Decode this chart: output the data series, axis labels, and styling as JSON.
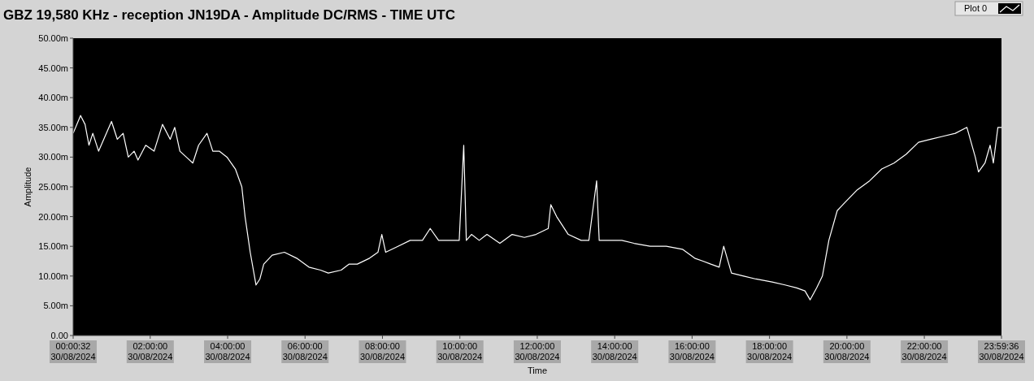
{
  "chart_data": {
    "type": "line",
    "title": "GBZ  19,580 KHz - reception JN19DA -  Amplitude DC/RMS   - TIME UTC",
    "xlabel": "Time",
    "ylabel": "Amplitude",
    "legend": "top right",
    "x": [
      "2024-08-30T00:00:32",
      "2024-08-30T00:12",
      "2024-08-30T00:19",
      "2024-08-30T00:25",
      "2024-08-30T00:31",
      "2024-08-30T00:40",
      "2024-08-30T00:50",
      "2024-08-30T01:00",
      "2024-08-30T01:09",
      "2024-08-30T01:18",
      "2024-08-30T01:26",
      "2024-08-30T01:35",
      "2024-08-30T01:41",
      "2024-08-30T01:53",
      "2024-08-30T02:06",
      "2024-08-30T02:19",
      "2024-08-30T02:31",
      "2024-08-30T02:38",
      "2024-08-30T02:46",
      "2024-08-30T02:56",
      "2024-08-30T03:06",
      "2024-08-30T03:15",
      "2024-08-30T03:28",
      "2024-08-30T03:37",
      "2024-08-30T03:47",
      "2024-08-30T03:59",
      "2024-08-30T04:12",
      "2024-08-30T04:22",
      "2024-08-30T04:27",
      "2024-08-30T04:35",
      "2024-08-30T04:44",
      "2024-08-30T04:50",
      "2024-08-30T04:56",
      "2024-08-30T05:09",
      "2024-08-30T05:28",
      "2024-08-30T05:47",
      "2024-08-30T06:06",
      "2024-08-30T06:24",
      "2024-08-30T06:36",
      "2024-08-30T06:56",
      "2024-08-30T07:08",
      "2024-08-30T07:21",
      "2024-08-30T07:40",
      "2024-08-30T07:53",
      "2024-08-30T07:59",
      "2024-08-30T08:05",
      "2024-08-30T08:24",
      "2024-08-30T08:43",
      "2024-08-30T09:02",
      "2024-08-30T09:14",
      "2024-08-30T09:27",
      "2024-08-30T09:46",
      "2024-08-30T09:59",
      "2024-08-30T10:06",
      "2024-08-30T10:10",
      "2024-08-30T10:18",
      "2024-08-30T10:30",
      "2024-08-30T10:42",
      "2024-08-30T11:02",
      "2024-08-30T11:21",
      "2024-08-30T11:40",
      "2024-08-30T11:58",
      "2024-08-30T12:17",
      "2024-08-30T12:21",
      "2024-08-30T12:30",
      "2024-08-30T12:48",
      "2024-08-30T13:08",
      "2024-08-30T13:20",
      "2024-08-30T13:32",
      "2024-08-30T13:36",
      "2024-08-30T13:52",
      "2024-08-30T14:11",
      "2024-08-30T14:30",
      "2024-08-30T14:55",
      "2024-08-30T15:20",
      "2024-08-30T15:45",
      "2024-08-30T16:04",
      "2024-08-30T16:17",
      "2024-08-30T16:29",
      "2024-08-30T16:42",
      "2024-08-30T16:49",
      "2024-08-30T17:01",
      "2024-08-30T17:20",
      "2024-08-30T17:39",
      "2024-08-30T18:04",
      "2024-08-30T18:24",
      "2024-08-30T18:42",
      "2024-08-30T18:55",
      "2024-08-30T19:03",
      "2024-08-30T19:13",
      "2024-08-30T19:22",
      "2024-08-30T19:32",
      "2024-08-30T19:45",
      "2024-08-30T19:58",
      "2024-08-30T20:16",
      "2024-08-30T20:35",
      "2024-08-30T20:54",
      "2024-08-30T21:13",
      "2024-08-30T21:32",
      "2024-08-30T21:51",
      "2024-08-30T22:10",
      "2024-08-30T22:29",
      "2024-08-30T22:48",
      "2024-08-30T23:06",
      "2024-08-30T23:19",
      "2024-08-30T23:24",
      "2024-08-30T23:34",
      "2024-08-30T23:42",
      "2024-08-30T23:47",
      "2024-08-30T23:54",
      "2024-08-30T23:59:36"
    ],
    "series": [
      {
        "name": "Plot 0",
        "color": "#ffffff",
        "values": [
          34,
          37,
          35.5,
          32,
          34,
          31,
          33.5,
          36,
          33,
          34,
          30,
          31,
          29.5,
          32,
          31,
          35.5,
          33,
          35,
          31,
          30,
          29,
          32,
          34,
          31,
          31,
          30,
          28,
          25,
          20,
          14,
          8.5,
          9.5,
          12,
          13.5,
          14,
          13,
          11.5,
          11,
          10.5,
          11,
          12,
          12,
          13,
          14,
          17,
          14,
          15,
          16,
          16,
          18,
          16,
          16,
          16,
          32,
          16,
          17,
          16,
          17,
          15.5,
          17,
          16.5,
          17,
          18,
          22,
          20,
          17,
          16,
          16,
          26,
          16,
          16,
          16,
          15.5,
          15,
          15,
          14.5,
          13,
          12.5,
          12,
          11.5,
          15,
          10.5,
          10,
          9.5,
          9,
          8.5,
          8,
          7.5,
          6,
          8,
          10,
          16,
          21,
          22.5,
          24.5,
          26,
          28,
          29,
          30.5,
          32.5,
          33,
          33.5,
          34,
          35,
          30,
          27.5,
          29,
          32,
          29,
          35,
          35
        ]
      }
    ],
    "xlim": [
      "2024-08-30T00:00:32",
      "2024-08-30T23:59:36"
    ],
    "xticks": [
      {
        "value": "2024-08-30T00:00:32",
        "label": "00:00:32\n30/08/2024"
      },
      {
        "value": "2024-08-30T02:00",
        "label": "02:00:00\n30/08/2024"
      },
      {
        "value": "2024-08-30T04:00",
        "label": "04:00:00\n30/08/2024"
      },
      {
        "value": "2024-08-30T06:00",
        "label": "06:00:00\n30/08/2024"
      },
      {
        "value": "2024-08-30T08:00",
        "label": "08:00:00\n30/08/2024"
      },
      {
        "value": "2024-08-30T10:00",
        "label": "10:00:00\n30/08/2024"
      },
      {
        "value": "2024-08-30T12:00",
        "label": "12:00:00\n30/08/2024"
      },
      {
        "value": "2024-08-30T14:00",
        "label": "14:00:00\n30/08/2024"
      },
      {
        "value": "2024-08-30T16:00",
        "label": "16:00:00\n30/08/2024"
      },
      {
        "value": "2024-08-30T18:00",
        "label": "18:00:00\n30/08/2024"
      },
      {
        "value": "2024-08-30T20:00",
        "label": "20:00:00\n30/08/2024"
      },
      {
        "value": "2024-08-30T22:00",
        "label": "22:00:00\n30/08/2024"
      },
      {
        "value": "2024-08-30T23:59:36",
        "label": "23:59:36\n30/08/2024"
      }
    ],
    "ylim": [
      0,
      50
    ],
    "yticks": [
      {
        "value": 0,
        "label": "0.00"
      },
      {
        "value": 5,
        "label": "5.00m"
      },
      {
        "value": 10,
        "label": "10.00m"
      },
      {
        "value": 15,
        "label": "15.00m"
      },
      {
        "value": 20,
        "label": "20.00m"
      },
      {
        "value": 25,
        "label": "25.00m"
      },
      {
        "value": 30,
        "label": "30.00m"
      },
      {
        "value": 35,
        "label": "35.00m"
      },
      {
        "value": 40,
        "label": "40.00m"
      },
      {
        "value": 45,
        "label": "45.00m"
      },
      {
        "value": 50,
        "label": "50.00m"
      }
    ]
  }
}
